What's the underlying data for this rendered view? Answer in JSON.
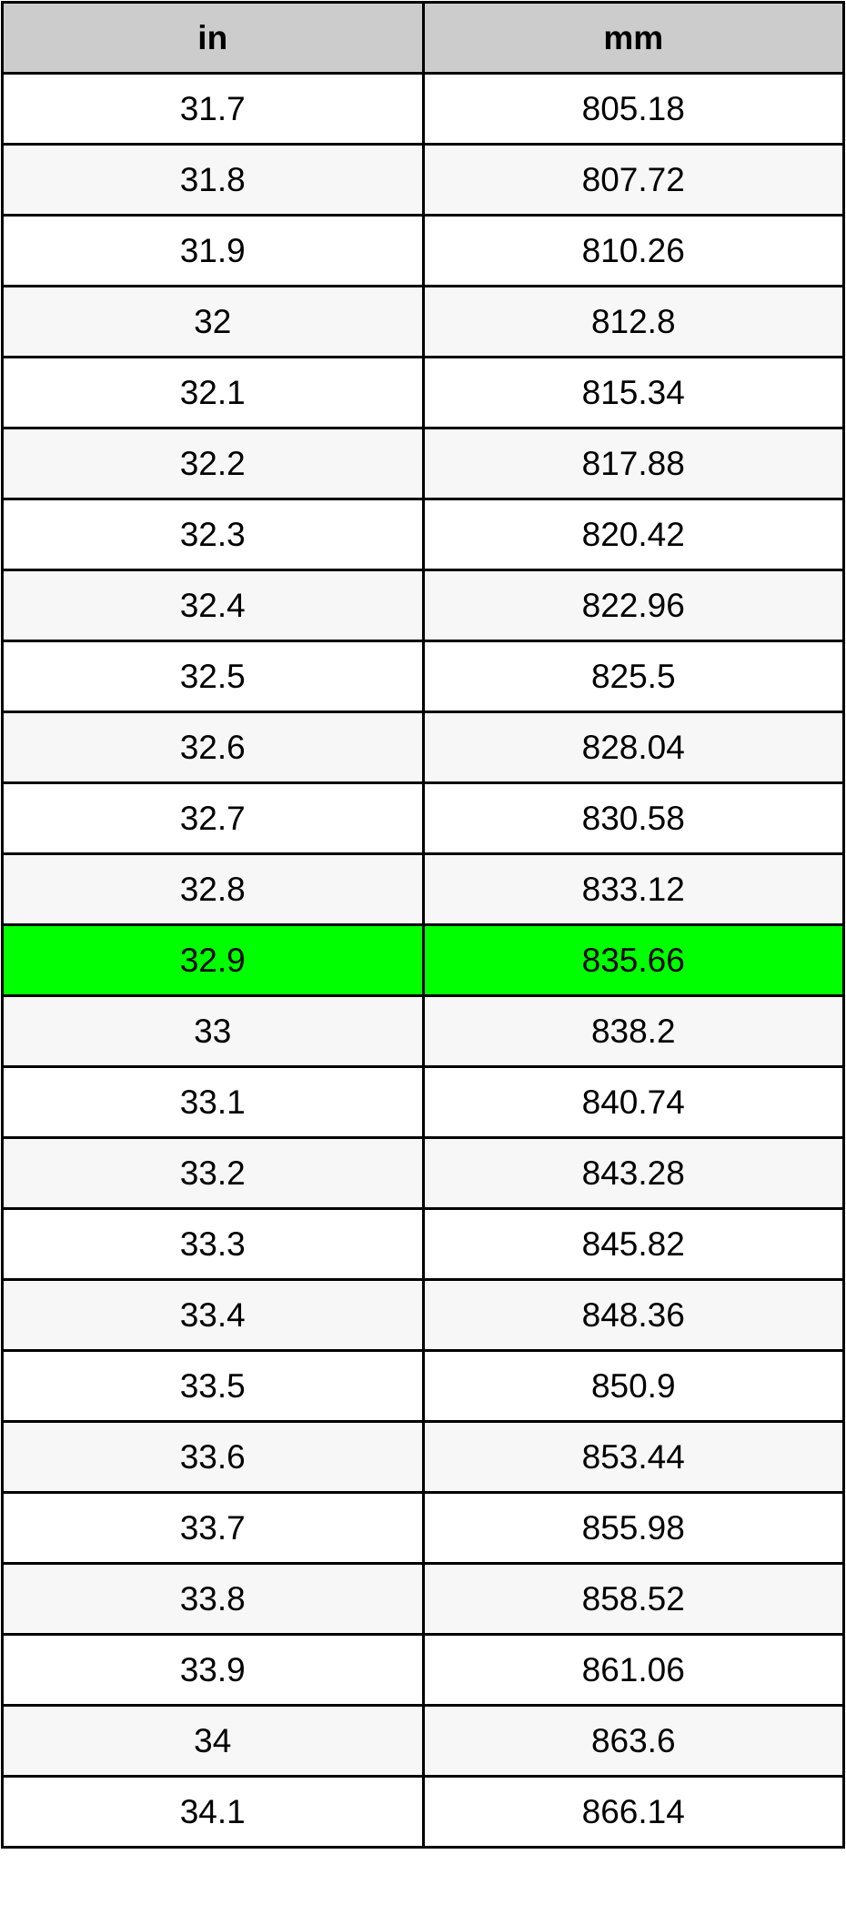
{
  "table": {
    "headers": [
      "in",
      "mm"
    ],
    "highlight_color": "#00ff00",
    "highlighted_row": 12,
    "rows": [
      [
        "31.7",
        "805.18"
      ],
      [
        "31.8",
        "807.72"
      ],
      [
        "31.9",
        "810.26"
      ],
      [
        "32",
        "812.8"
      ],
      [
        "32.1",
        "815.34"
      ],
      [
        "32.2",
        "817.88"
      ],
      [
        "32.3",
        "820.42"
      ],
      [
        "32.4",
        "822.96"
      ],
      [
        "32.5",
        "825.5"
      ],
      [
        "32.6",
        "828.04"
      ],
      [
        "32.7",
        "830.58"
      ],
      [
        "32.8",
        "833.12"
      ],
      [
        "32.9",
        "835.66"
      ],
      [
        "33",
        "838.2"
      ],
      [
        "33.1",
        "840.74"
      ],
      [
        "33.2",
        "843.28"
      ],
      [
        "33.3",
        "845.82"
      ],
      [
        "33.4",
        "848.36"
      ],
      [
        "33.5",
        "850.9"
      ],
      [
        "33.6",
        "853.44"
      ],
      [
        "33.7",
        "855.98"
      ],
      [
        "33.8",
        "858.52"
      ],
      [
        "33.9",
        "861.06"
      ],
      [
        "34",
        "863.6"
      ],
      [
        "34.1",
        "866.14"
      ]
    ]
  }
}
